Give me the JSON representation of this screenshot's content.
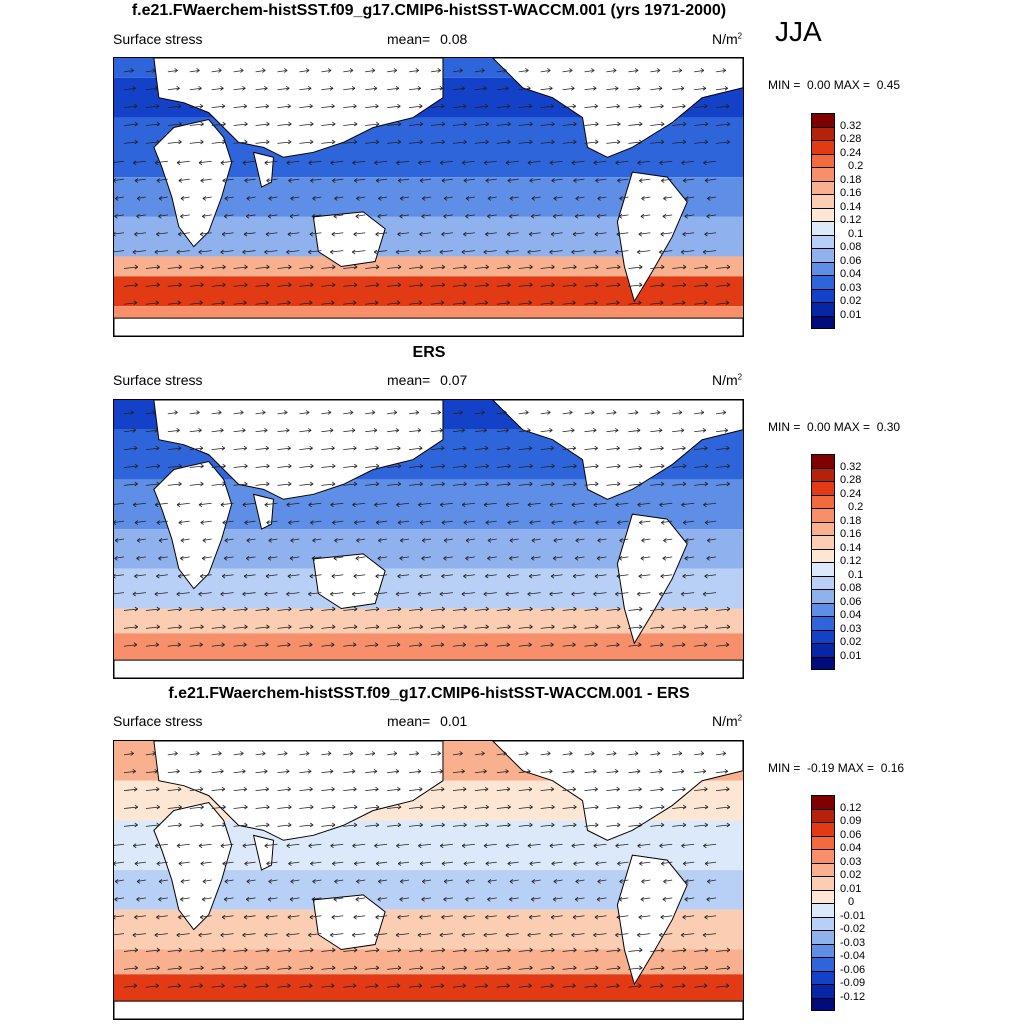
{
  "season": "JJA",
  "panels": [
    {
      "title": "f.e21.FWaerchem-histSST.f09_g17.CMIP6-histSST-WACCM.001 (yrs 1971-2000)",
      "variable": "Surface stress",
      "mean_label": "mean=",
      "mean_value": "0.08",
      "units": "N/m",
      "units_exp": "2",
      "min_label": "MIN =",
      "min_value": "0.00",
      "max_label": "MAX =",
      "max_value": "0.45",
      "colorbar_labels": [
        "0.32",
        "0.28",
        "0.24",
        "0.2",
        "0.18",
        "0.16",
        "0.14",
        "0.12",
        "0.1",
        "0.08",
        "0.06",
        "0.04",
        "0.03",
        "0.02",
        "0.01"
      ],
      "colorbar_colors": [
        "#800000",
        "#b5220b",
        "#e23a14",
        "#f26a3d",
        "#f7906a",
        "#f9b08f",
        "#fbcdb3",
        "#fde6d3",
        "#dbe9fa",
        "#b8d0f5",
        "#8fb2ef",
        "#5e8ee6",
        "#2f65db",
        "#1341c8",
        "#0626a6",
        "#000c7c"
      ]
    },
    {
      "title": "ERS",
      "variable": "Surface stress",
      "mean_label": "mean=",
      "mean_value": "0.07",
      "units": "N/m",
      "units_exp": "2",
      "min_label": "MIN =",
      "min_value": "0.00",
      "max_label": "MAX =",
      "max_value": "0.30",
      "colorbar_labels": [
        "0.32",
        "0.28",
        "0.24",
        "0.2",
        "0.18",
        "0.16",
        "0.14",
        "0.12",
        "0.1",
        "0.08",
        "0.06",
        "0.04",
        "0.03",
        "0.02",
        "0.01"
      ],
      "colorbar_colors": [
        "#800000",
        "#b5220b",
        "#e23a14",
        "#f26a3d",
        "#f7906a",
        "#f9b08f",
        "#fbcdb3",
        "#fde6d3",
        "#dbe9fa",
        "#b8d0f5",
        "#8fb2ef",
        "#5e8ee6",
        "#2f65db",
        "#1341c8",
        "#0626a6",
        "#000c7c"
      ]
    },
    {
      "title": "f.e21.FWaerchem-histSST.f09_g17.CMIP6-histSST-WACCM.001 - ERS",
      "variable": "Surface stress",
      "mean_label": "mean=",
      "mean_value": "0.01",
      "units": "N/m",
      "units_exp": "2",
      "min_label": "MIN =",
      "min_value": "-0.19",
      "max_label": "MAX =",
      "max_value": "0.16",
      "colorbar_labels": [
        "0.12",
        "0.09",
        "0.06",
        "0.04",
        "0.03",
        "0.02",
        "0.01",
        "0",
        "-0.01",
        "-0.02",
        "-0.03",
        "-0.04",
        "-0.06",
        "-0.09",
        "-0.12"
      ],
      "colorbar_colors": [
        "#800000",
        "#b5220b",
        "#e23a14",
        "#f26a3d",
        "#f7906a",
        "#f9b08f",
        "#fbcdb3",
        "#fde6d3",
        "#dbe9fa",
        "#b8d0f5",
        "#8fb2ef",
        "#5e8ee6",
        "#2f65db",
        "#1341c8",
        "#0626a6",
        "#000c7c"
      ]
    }
  ],
  "icons": {
    "vector": "wind-stress-arrow-icon"
  }
}
